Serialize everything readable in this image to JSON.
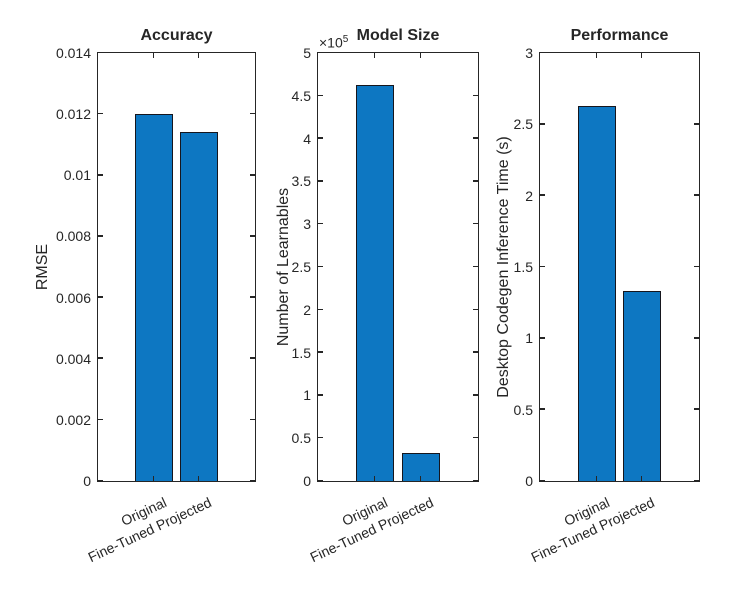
{
  "colors": {
    "background": "#ffffff",
    "bar_fill": "#0d77c2",
    "bar_edge": "#16161d",
    "axis": "#262626",
    "text": "#262626"
  },
  "chart_data": [
    {
      "type": "bar",
      "title": "Accuracy",
      "ylabel": "RMSE",
      "categories": [
        "Original",
        "Fine-Tuned Projected"
      ],
      "values": [
        0.012,
        0.0114
      ],
      "ylim": [
        0,
        0.014
      ],
      "yticks": [
        0,
        0.002,
        0.004,
        0.006,
        0.008,
        0.01,
        0.012,
        0.014
      ],
      "ytick_labels": [
        "0",
        "0.002",
        "0.004",
        "0.006",
        "0.008",
        "0.01",
        "0.012",
        "0.014"
      ],
      "grid": false,
      "legend": null
    },
    {
      "type": "bar",
      "title": "Model Size",
      "ylabel": "Number of Learnables",
      "exponent": {
        "base": "×10",
        "power": "5"
      },
      "categories": [
        "Original",
        "Fine-Tuned Projected"
      ],
      "values": [
        4.63,
        0.33
      ],
      "ylim": [
        0,
        5
      ],
      "yticks": [
        0,
        0.5,
        1,
        1.5,
        2,
        2.5,
        3,
        3.5,
        4,
        4.5,
        5
      ],
      "ytick_labels": [
        "0",
        "0.5",
        "1",
        "1.5",
        "2",
        "2.5",
        "3",
        "3.5",
        "4",
        "4.5",
        "5"
      ],
      "grid": false,
      "legend": null
    },
    {
      "type": "bar",
      "title": "Performance",
      "ylabel": "Desktop Codegen Inference Time (s)",
      "categories": [
        "Original",
        "Fine-Tuned Projected"
      ],
      "values": [
        2.63,
        1.33
      ],
      "ylim": [
        0,
        3
      ],
      "yticks": [
        0,
        0.5,
        1,
        1.5,
        2,
        2.5,
        3
      ],
      "ytick_labels": [
        "0",
        "0.5",
        "1",
        "1.5",
        "2",
        "2.5",
        "3"
      ],
      "grid": false,
      "legend": null
    }
  ]
}
